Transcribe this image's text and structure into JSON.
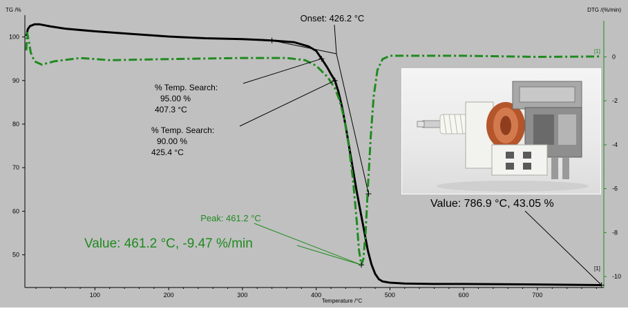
{
  "chart_data": {
    "type": "line",
    "xlabel": "Temperature /°C",
    "y_left_label": "TG /%",
    "y_right_label": "DTG /(%/min)",
    "xlim": [
      5,
      790
    ],
    "ylim_left": [
      42.5,
      105
    ],
    "ylim_right": [
      -10.5,
      1.9
    ],
    "x_ticks": [
      100,
      200,
      300,
      400,
      500,
      600,
      700
    ],
    "y_left_ticks": [
      50,
      60,
      70,
      80,
      90,
      100
    ],
    "y_right_ticks": [
      0,
      -2,
      -4,
      -6,
      -8,
      -10
    ],
    "series": [
      {
        "name": "TG",
        "axis": "left",
        "color": "#000000",
        "style": "solid",
        "points": [
          [
            7,
            100.2
          ],
          [
            9,
            101.8
          ],
          [
            12,
            102.5
          ],
          [
            18,
            102.9
          ],
          [
            25,
            102.9
          ],
          [
            40,
            102.4
          ],
          [
            60,
            101.9
          ],
          [
            100,
            101.3
          ],
          [
            150,
            100.7
          ],
          [
            200,
            100.1
          ],
          [
            250,
            99.7
          ],
          [
            300,
            99.5
          ],
          [
            340,
            99.2
          ],
          [
            370,
            98.8
          ],
          [
            390,
            97.8
          ],
          [
            400,
            96.8
          ],
          [
            407.3,
            95.0
          ],
          [
            415,
            93.0
          ],
          [
            420,
            91.5
          ],
          [
            425.4,
            90.0
          ],
          [
            430,
            87.5
          ],
          [
            435,
            84.0
          ],
          [
            440,
            79.5
          ],
          [
            445,
            74.5
          ],
          [
            450,
            69.5
          ],
          [
            455,
            64.5
          ],
          [
            460,
            60.0
          ],
          [
            465,
            55.5
          ],
          [
            470,
            51.0
          ],
          [
            475,
            47.8
          ],
          [
            480,
            45.6
          ],
          [
            485,
            44.4
          ],
          [
            490,
            43.9
          ],
          [
            500,
            43.6
          ],
          [
            520,
            43.4
          ],
          [
            560,
            43.3
          ],
          [
            600,
            43.3
          ],
          [
            700,
            43.2
          ],
          [
            786.9,
            43.05
          ]
        ]
      },
      {
        "name": "DTG",
        "axis": "right",
        "color": "#1f8a1f",
        "style": "dashdot",
        "points": [
          [
            7,
            0.3
          ],
          [
            8,
            1.1
          ],
          [
            10,
            0.8
          ],
          [
            13,
            0.2
          ],
          [
            18,
            -0.2
          ],
          [
            28,
            -0.35
          ],
          [
            45,
            -0.2
          ],
          [
            80,
            -0.05
          ],
          [
            120,
            -0.15
          ],
          [
            200,
            -0.1
          ],
          [
            300,
            -0.05
          ],
          [
            360,
            -0.05
          ],
          [
            385,
            -0.15
          ],
          [
            400,
            -0.4
          ],
          [
            415,
            -0.9
          ],
          [
            425,
            -1.4
          ],
          [
            432,
            -2.0
          ],
          [
            438,
            -2.8
          ],
          [
            444,
            -4.0
          ],
          [
            450,
            -5.6
          ],
          [
            455,
            -7.5
          ],
          [
            458,
            -8.8
          ],
          [
            461.2,
            -9.47
          ],
          [
            464,
            -9.2
          ],
          [
            467,
            -8.0
          ],
          [
            470,
            -6.0
          ],
          [
            474,
            -3.6
          ],
          [
            478,
            -1.8
          ],
          [
            483,
            -0.6
          ],
          [
            490,
            -0.1
          ],
          [
            500,
            0.05
          ],
          [
            600,
            0.05
          ],
          [
            700,
            0.0
          ],
          [
            786,
            0.02
          ]
        ]
      }
    ],
    "markers": [
      {
        "x": 340,
        "y": 99.2,
        "axis": "left"
      },
      {
        "x": 407.3,
        "y": 95.0,
        "axis": "left"
      },
      {
        "x": 425.4,
        "y": 90.0,
        "axis": "left"
      },
      {
        "x": 471,
        "y": 64.0,
        "axis": "left"
      },
      {
        "x": 461.2,
        "y": -9.47,
        "axis": "right"
      },
      {
        "x": 786.9,
        "y": 43.05,
        "axis": "left"
      }
    ],
    "onset_label": "Onset: 426.2 °C",
    "onset_value": 426.2,
    "temp_search": [
      {
        "line1": "% Temp. Search:",
        "line2": "95.00 %",
        "line3": "407.3 °C",
        "x": 407.3,
        "y": 95.0
      },
      {
        "line1": "% Temp. Search:",
        "line2": "90.00 %",
        "line3": "425.4 °C",
        "x": 425.4,
        "y": 90.0
      }
    ],
    "peak_label": "Peak: 461.2 °C",
    "value_dtg_label": "Value: 461.2 °C, -9.47 %/min",
    "value_tg_label": "Value: 786.9 °C, 43.05 %",
    "curve_tag": "[1]",
    "grid": false
  },
  "colors": {
    "background": "#c0c0c0",
    "tg": "#000000",
    "dtg": "#1f8a1f",
    "axis": "#000000"
  }
}
